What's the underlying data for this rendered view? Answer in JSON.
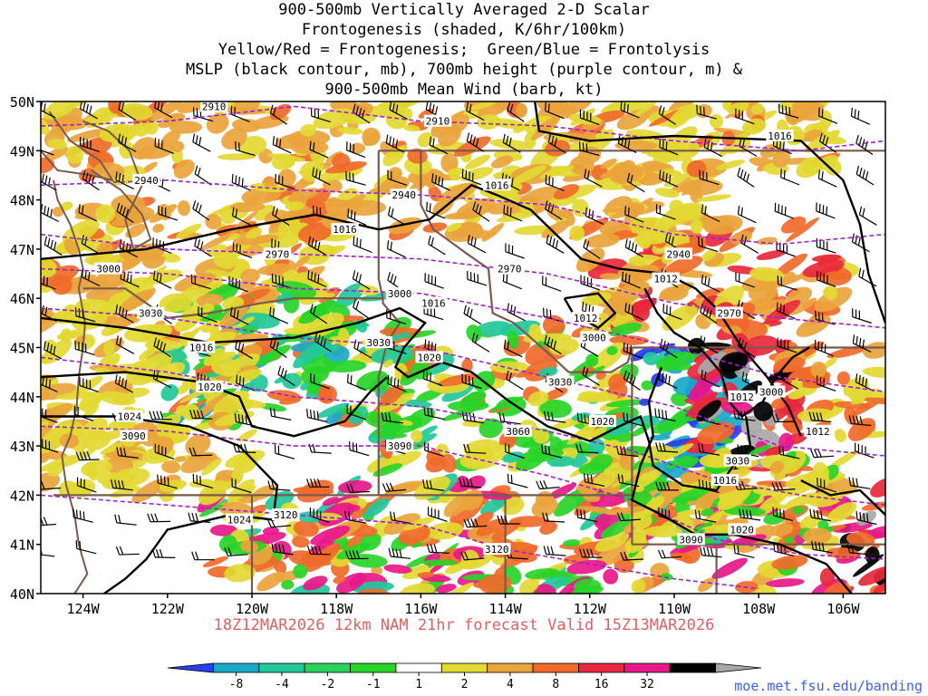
{
  "title_lines": [
    "900-500mb Vertically Averaged 2-D Scalar",
    "Frontogenesis (shaded, K/6hr/100km)",
    "Yellow/Red = Frontogenesis;  Green/Blue = Frontolysis",
    "MSLP (black contour, mb), 700mb height (purple contour, m) &",
    "900-500mb Mean Wind (barb, kt)"
  ],
  "lat_labels": [
    "50N",
    "49N",
    "48N",
    "47N",
    "46N",
    "45N",
    "44N",
    "43N",
    "42N",
    "41N",
    "40N"
  ],
  "lon_labels": [
    "124W",
    "122W",
    "120W",
    "118W",
    "116W",
    "114W",
    "112W",
    "110W",
    "108W",
    "106W"
  ],
  "forecast_text": "18Z12MAR2026 12km NAM 21hr forecast Valid 15Z13MAR2026",
  "url": "moe.met.fsu.edu/banding",
  "colorbar": {
    "labels": [
      "-8",
      "-4",
      "-2",
      "-1",
      "1",
      "2",
      "4",
      "8",
      "16",
      "32"
    ],
    "colors": [
      "#2a3ef0",
      "#1aa8c8",
      "#22c89a",
      "#2ad25a",
      "#28d428",
      "#ffffff",
      "#e2d932",
      "#eaa43c",
      "#f06a2a",
      "#e8283c",
      "#e8188a",
      "#000000",
      "#a8a8a8"
    ]
  },
  "mslp_labels": [
    {
      "text": "1016",
      "lon": -107.5,
      "lat": 49.3
    },
    {
      "text": "1016",
      "lon": -114.2,
      "lat": 48.3
    },
    {
      "text": "1016",
      "lon": -117.8,
      "lat": 47.4
    },
    {
      "text": "1016",
      "lon": -115.7,
      "lat": 45.9
    },
    {
      "text": "1016",
      "lon": -121.2,
      "lat": 45.0
    },
    {
      "text": "1020",
      "lon": -121.0,
      "lat": 44.2
    },
    {
      "text": "1024",
      "lon": -122.9,
      "lat": 43.6
    },
    {
      "text": "1020",
      "lon": -115.8,
      "lat": 44.8
    },
    {
      "text": "1020",
      "lon": -111.7,
      "lat": 43.5
    },
    {
      "text": "1012",
      "lon": -112.1,
      "lat": 45.6
    },
    {
      "text": "1012",
      "lon": -110.2,
      "lat": 46.4
    },
    {
      "text": "1012",
      "lon": -108.4,
      "lat": 44.0
    },
    {
      "text": "1012",
      "lon": -106.6,
      "lat": 43.3
    },
    {
      "text": "1016",
      "lon": -108.8,
      "lat": 42.3
    },
    {
      "text": "1020",
      "lon": -108.4,
      "lat": 41.3
    },
    {
      "text": "1024",
      "lon": -120.3,
      "lat": 41.5
    }
  ],
  "height_labels": [
    {
      "text": "2910",
      "lon": -120.9,
      "lat": 49.9
    },
    {
      "text": "2910",
      "lon": -115.6,
      "lat": 49.6
    },
    {
      "text": "2940",
      "lon": -122.5,
      "lat": 48.4
    },
    {
      "text": "2940",
      "lon": -116.4,
      "lat": 48.1
    },
    {
      "text": "2940",
      "lon": -109.9,
      "lat": 46.9
    },
    {
      "text": "2970",
      "lon": -119.4,
      "lat": 46.9
    },
    {
      "text": "2970",
      "lon": -113.9,
      "lat": 46.6
    },
    {
      "text": "2970",
      "lon": -108.7,
      "lat": 45.7
    },
    {
      "text": "3000",
      "lon": -123.4,
      "lat": 46.6
    },
    {
      "text": "3000",
      "lon": -116.5,
      "lat": 46.1
    },
    {
      "text": "3000",
      "lon": -111.9,
      "lat": 45.2
    },
    {
      "text": "3000",
      "lon": -107.7,
      "lat": 44.1
    },
    {
      "text": "3030",
      "lon": -122.4,
      "lat": 45.7
    },
    {
      "text": "3030",
      "lon": -117.0,
      "lat": 45.1
    },
    {
      "text": "3030",
      "lon": -112.7,
      "lat": 44.3
    },
    {
      "text": "3030",
      "lon": -108.5,
      "lat": 42.7
    },
    {
      "text": "3060",
      "lon": -113.7,
      "lat": 43.3
    },
    {
      "text": "3090",
      "lon": -122.8,
      "lat": 43.2
    },
    {
      "text": "3090",
      "lon": -116.5,
      "lat": 43.0
    },
    {
      "text": "3090",
      "lon": -109.6,
      "lat": 41.1
    },
    {
      "text": "3120",
      "lon": -119.2,
      "lat": 41.6
    },
    {
      "text": "3120",
      "lon": -114.2,
      "lat": 40.9
    }
  ]
}
